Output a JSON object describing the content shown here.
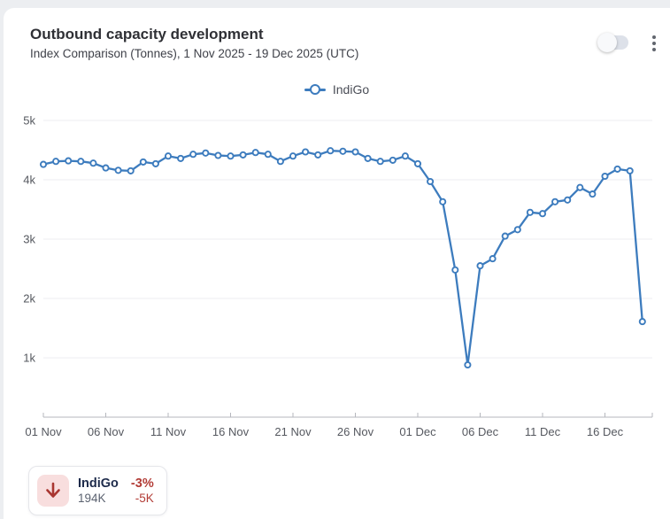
{
  "header": {
    "title": "Outbound capacity development",
    "subtitle": "Index Comparison (Tonnes), 1 Nov 2025 - 19 Dec 2025 (UTC)"
  },
  "controls": {
    "toggle_state": "off",
    "menu_icon": "kebab-vertical"
  },
  "legend": {
    "label": "IndiGo",
    "marker": "line-circle",
    "color": "#3d7cbe"
  },
  "summary_card": {
    "airline": "IndiGo",
    "pct_change": "-3%",
    "total": "194K",
    "abs_change": "-5K",
    "trend_icon": "down-arrow",
    "trend_color": "#a93631",
    "trend_bg": "#f8dede"
  },
  "colors": {
    "line": "#3d7cbe",
    "negative": "#b23c36",
    "grid": "#ececf1",
    "axis": "#b5b7bd",
    "tick_text": "#55585f"
  },
  "chart_data": {
    "type": "line",
    "title": "Outbound capacity development",
    "subtitle": "Index Comparison (Tonnes), 1 Nov 2025 - 19 Dec 2025 (UTC)",
    "series_name": "IndiGo",
    "unit": "Tonnes",
    "grid": true,
    "legend_position": "top-center",
    "ylim": [
      0,
      5000
    ],
    "y_ticks": [
      "1k",
      "2k",
      "3k",
      "4k",
      "5k"
    ],
    "y_tick_values": [
      1000,
      2000,
      3000,
      4000,
      5000
    ],
    "x_tick_labels": [
      "01 Nov",
      "06 Nov",
      "11 Nov",
      "16 Nov",
      "21 Nov",
      "26 Nov",
      "01 Dec",
      "06 Dec",
      "11 Dec",
      "16 Dec"
    ],
    "x_tick_days": [
      0,
      5,
      10,
      15,
      20,
      25,
      30,
      35,
      40,
      45
    ],
    "x": [
      "01 Nov",
      "02 Nov",
      "03 Nov",
      "04 Nov",
      "05 Nov",
      "06 Nov",
      "07 Nov",
      "08 Nov",
      "09 Nov",
      "10 Nov",
      "11 Nov",
      "12 Nov",
      "13 Nov",
      "14 Nov",
      "15 Nov",
      "16 Nov",
      "17 Nov",
      "18 Nov",
      "19 Nov",
      "20 Nov",
      "21 Nov",
      "22 Nov",
      "23 Nov",
      "24 Nov",
      "25 Nov",
      "26 Nov",
      "27 Nov",
      "28 Nov",
      "29 Nov",
      "30 Nov",
      "01 Dec",
      "02 Dec",
      "03 Dec",
      "04 Dec",
      "05 Dec",
      "06 Dec",
      "07 Dec",
      "08 Dec",
      "09 Dec",
      "10 Dec",
      "11 Dec",
      "12 Dec",
      "13 Dec",
      "14 Dec",
      "15 Dec",
      "16 Dec",
      "17 Dec",
      "18 Dec",
      "19 Dec"
    ],
    "values": [
      4260,
      4310,
      4320,
      4310,
      4280,
      4200,
      4160,
      4150,
      4300,
      4270,
      4400,
      4360,
      4430,
      4450,
      4410,
      4400,
      4420,
      4460,
      4430,
      4310,
      4400,
      4470,
      4420,
      4490,
      4480,
      4470,
      4360,
      4310,
      4330,
      4400,
      4270,
      3970,
      3630,
      2480,
      880,
      2550,
      2670,
      3050,
      3160,
      3450,
      3430,
      3630,
      3660,
      3870,
      3760,
      4060,
      4180,
      4150,
      1610
    ]
  }
}
